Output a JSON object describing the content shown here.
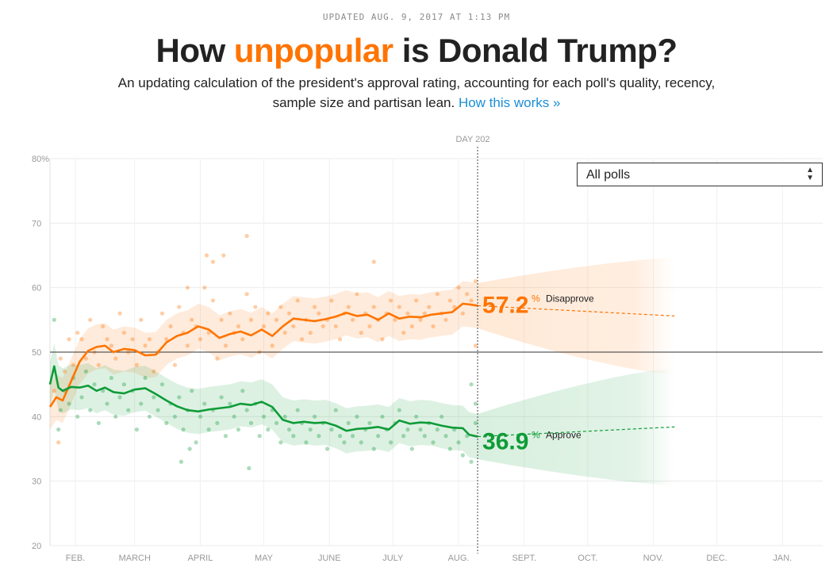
{
  "header": {
    "updated": "UPDATED AUG. 9, 2017 AT 1:13 PM",
    "title_pre": "How ",
    "title_highlight": "unpopular",
    "title_post": " is Donald Trump?",
    "subtitle": "An updating calculation of the president's approval rating, accounting for each poll's quality, recency, sample size and partisan lean.",
    "link": "How this works »"
  },
  "filter": {
    "selected": "All polls",
    "icon": "up-down-arrows-icon"
  },
  "chart_data": {
    "type": "line",
    "marker": {
      "label": "DAY 202",
      "x": 202
    },
    "ylim": [
      20,
      80
    ],
    "yticks": [
      {
        "v": 20,
        "label": "20"
      },
      {
        "v": 30,
        "label": "30"
      },
      {
        "v": 40,
        "label": "40"
      },
      {
        "v": 50,
        "label": "50"
      },
      {
        "v": 60,
        "label": "60"
      },
      {
        "v": 70,
        "label": "70"
      },
      {
        "v": 80,
        "label": "80%"
      }
    ],
    "xlim": [
      0,
      365
    ],
    "xticks": [
      {
        "day": 12,
        "label": "FEB."
      },
      {
        "day": 40,
        "label": "MARCH"
      },
      {
        "day": 71,
        "label": "APRIL"
      },
      {
        "day": 101,
        "label": "MAY"
      },
      {
        "day": 132,
        "label": "JUNE"
      },
      {
        "day": 162,
        "label": "JULY"
      },
      {
        "day": 193,
        "label": "AUG."
      },
      {
        "day": 224,
        "label": "SEPT."
      },
      {
        "day": 254,
        "label": "OCT."
      },
      {
        "day": 285,
        "label": "NOV."
      },
      {
        "day": 315,
        "label": "DEC."
      },
      {
        "day": 346,
        "label": "JAN."
      }
    ],
    "reference_line": 50,
    "series": [
      {
        "name": "Disapprove",
        "color": "#ff7400",
        "current": "57.2",
        "x": [
          0,
          3,
          6,
          10,
          14,
          18,
          22,
          26,
          30,
          35,
          40,
          45,
          50,
          55,
          60,
          65,
          70,
          75,
          80,
          85,
          90,
          95,
          100,
          105,
          110,
          115,
          120,
          125,
          130,
          135,
          140,
          145,
          150,
          155,
          160,
          165,
          170,
          175,
          180,
          185,
          190,
          195,
          198,
          202
        ],
        "y": [
          41.5,
          43.0,
          42.5,
          45.5,
          48.5,
          50.2,
          50.8,
          51.0,
          50.0,
          50.5,
          50.3,
          49.5,
          49.6,
          51.5,
          52.5,
          53.0,
          54.0,
          53.5,
          52.2,
          52.8,
          53.2,
          52.6,
          53.5,
          52.5,
          54.0,
          55.2,
          55.0,
          54.8,
          55.1,
          55.5,
          56.1,
          55.6,
          55.8,
          55.0,
          56.0,
          55.2,
          55.5,
          55.4,
          55.8,
          56.0,
          56.2,
          57.5,
          57.4,
          57.2
        ],
        "band": 3.5,
        "forecast": {
          "x": [
            202,
            295
          ],
          "y": [
            57.2,
            55.6
          ],
          "spread": [
            3.5,
            9.0
          ]
        },
        "polls": [
          [
            2,
            44
          ],
          [
            4,
            36
          ],
          [
            5,
            49
          ],
          [
            7,
            47
          ],
          [
            9,
            52
          ],
          [
            11,
            48
          ],
          [
            13,
            53
          ],
          [
            15,
            52
          ],
          [
            17,
            49
          ],
          [
            19,
            55
          ],
          [
            21,
            50
          ],
          [
            23,
            48
          ],
          [
            25,
            54
          ],
          [
            27,
            52
          ],
          [
            29,
            51
          ],
          [
            31,
            49
          ],
          [
            33,
            56
          ],
          [
            35,
            53
          ],
          [
            37,
            50
          ],
          [
            39,
            52
          ],
          [
            41,
            48
          ],
          [
            43,
            55
          ],
          [
            45,
            51
          ],
          [
            47,
            52
          ],
          [
            49,
            47
          ],
          [
            51,
            50
          ],
          [
            53,
            56
          ],
          [
            55,
            52
          ],
          [
            57,
            54
          ],
          [
            59,
            48
          ],
          [
            61,
            57
          ],
          [
            63,
            53
          ],
          [
            65,
            51
          ],
          [
            67,
            55
          ],
          [
            69,
            54
          ],
          [
            71,
            52
          ],
          [
            73,
            60
          ],
          [
            75,
            53
          ],
          [
            77,
            58
          ],
          [
            79,
            49
          ],
          [
            81,
            55
          ],
          [
            83,
            51
          ],
          [
            85,
            56
          ],
          [
            87,
            53
          ],
          [
            89,
            54
          ],
          [
            91,
            52
          ],
          [
            93,
            59
          ],
          [
            95,
            55
          ],
          [
            97,
            57
          ],
          [
            99,
            50
          ],
          [
            101,
            54
          ],
          [
            103,
            56
          ],
          [
            105,
            51
          ],
          [
            107,
            55
          ],
          [
            109,
            57
          ],
          [
            111,
            53
          ],
          [
            113,
            56
          ],
          [
            115,
            54
          ],
          [
            117,
            58
          ],
          [
            119,
            52
          ],
          [
            121,
            55
          ],
          [
            123,
            53
          ],
          [
            125,
            57
          ],
          [
            127,
            56
          ],
          [
            129,
            54
          ],
          [
            131,
            55
          ],
          [
            133,
            58
          ],
          [
            135,
            54
          ],
          [
            137,
            52
          ],
          [
            139,
            56
          ],
          [
            141,
            57
          ],
          [
            143,
            55
          ],
          [
            145,
            59
          ],
          [
            147,
            53
          ],
          [
            149,
            56
          ],
          [
            151,
            54
          ],
          [
            153,
            57
          ],
          [
            155,
            55
          ],
          [
            157,
            52
          ],
          [
            159,
            56
          ],
          [
            161,
            58
          ],
          [
            163,
            55
          ],
          [
            165,
            57
          ],
          [
            167,
            53
          ],
          [
            169,
            56
          ],
          [
            171,
            54
          ],
          [
            173,
            58
          ],
          [
            175,
            55
          ],
          [
            177,
            56
          ],
          [
            179,
            57
          ],
          [
            181,
            54
          ],
          [
            183,
            59
          ],
          [
            185,
            56
          ],
          [
            187,
            55
          ],
          [
            189,
            58
          ],
          [
            191,
            57
          ],
          [
            193,
            60
          ],
          [
            195,
            56
          ],
          [
            197,
            59
          ],
          [
            199,
            58
          ],
          [
            201,
            61
          ],
          [
            74,
            65
          ],
          [
            77,
            64
          ],
          [
            82,
            65
          ],
          [
            93,
            68
          ],
          [
            65,
            60
          ],
          [
            153,
            64
          ],
          [
            201,
            51
          ]
        ]
      },
      {
        "name": "Approve",
        "color": "#0e9c37",
        "current": "36.9",
        "x": [
          0,
          2,
          4,
          6,
          10,
          14,
          18,
          22,
          26,
          30,
          35,
          40,
          45,
          50,
          55,
          60,
          65,
          70,
          75,
          80,
          85,
          90,
          95,
          100,
          105,
          110,
          115,
          120,
          125,
          130,
          135,
          140,
          145,
          150,
          155,
          160,
          165,
          170,
          175,
          180,
          185,
          190,
          195,
          198,
          202
        ],
        "y": [
          45.0,
          47.8,
          44.5,
          44.0,
          44.6,
          44.5,
          44.8,
          44.0,
          44.5,
          43.8,
          43.6,
          44.2,
          44.4,
          43.5,
          42.5,
          41.6,
          41.0,
          40.8,
          41.1,
          41.3,
          41.5,
          42.0,
          41.8,
          42.3,
          41.5,
          39.5,
          39.0,
          39.2,
          39.0,
          39.1,
          38.6,
          37.8,
          38.1,
          38.2,
          38.4,
          38.0,
          39.4,
          38.9,
          39.1,
          39.0,
          38.6,
          38.3,
          38.2,
          37.2,
          36.9
        ],
        "band": 3.5,
        "forecast": {
          "x": [
            202,
            295
          ],
          "y": [
            36.9,
            38.4
          ],
          "spread": [
            3.5,
            9.0
          ]
        },
        "polls": [
          [
            2,
            55
          ],
          [
            4,
            38
          ],
          [
            5,
            41
          ],
          [
            7,
            44
          ],
          [
            9,
            42
          ],
          [
            11,
            46
          ],
          [
            13,
            40
          ],
          [
            15,
            43
          ],
          [
            17,
            47
          ],
          [
            19,
            41
          ],
          [
            21,
            45
          ],
          [
            23,
            39
          ],
          [
            25,
            44
          ],
          [
            27,
            42
          ],
          [
            29,
            46
          ],
          [
            31,
            40
          ],
          [
            33,
            43
          ],
          [
            35,
            45
          ],
          [
            37,
            41
          ],
          [
            39,
            44
          ],
          [
            41,
            38
          ],
          [
            43,
            42
          ],
          [
            45,
            46
          ],
          [
            47,
            40
          ],
          [
            49,
            43
          ],
          [
            51,
            41
          ],
          [
            53,
            45
          ],
          [
            55,
            39
          ],
          [
            57,
            42
          ],
          [
            59,
            40
          ],
          [
            61,
            43
          ],
          [
            63,
            38
          ],
          [
            65,
            41
          ],
          [
            67,
            44
          ],
          [
            69,
            36
          ],
          [
            71,
            40
          ],
          [
            73,
            42
          ],
          [
            75,
            38
          ],
          [
            77,
            41
          ],
          [
            79,
            39
          ],
          [
            81,
            43
          ],
          [
            83,
            37
          ],
          [
            85,
            42
          ],
          [
            87,
            40
          ],
          [
            89,
            38
          ],
          [
            91,
            44
          ],
          [
            93,
            41
          ],
          [
            95,
            39
          ],
          [
            97,
            42
          ],
          [
            99,
            37
          ],
          [
            101,
            40
          ],
          [
            103,
            38
          ],
          [
            105,
            41
          ],
          [
            107,
            39
          ],
          [
            109,
            36
          ],
          [
            111,
            40
          ],
          [
            113,
            38
          ],
          [
            115,
            37
          ],
          [
            117,
            41
          ],
          [
            119,
            39
          ],
          [
            121,
            36
          ],
          [
            123,
            38
          ],
          [
            125,
            40
          ],
          [
            127,
            37
          ],
          [
            129,
            39
          ],
          [
            131,
            35
          ],
          [
            133,
            38
          ],
          [
            135,
            41
          ],
          [
            137,
            37
          ],
          [
            139,
            36
          ],
          [
            141,
            39
          ],
          [
            143,
            37
          ],
          [
            145,
            40
          ],
          [
            147,
            36
          ],
          [
            149,
            38
          ],
          [
            151,
            39
          ],
          [
            153,
            35
          ],
          [
            155,
            37
          ],
          [
            157,
            40
          ],
          [
            159,
            38
          ],
          [
            161,
            36
          ],
          [
            163,
            39
          ],
          [
            165,
            41
          ],
          [
            167,
            37
          ],
          [
            169,
            38
          ],
          [
            171,
            35
          ],
          [
            173,
            40
          ],
          [
            175,
            38
          ],
          [
            177,
            37
          ],
          [
            179,
            39
          ],
          [
            181,
            36
          ],
          [
            183,
            38
          ],
          [
            185,
            40
          ],
          [
            187,
            37
          ],
          [
            189,
            35
          ],
          [
            191,
            38
          ],
          [
            193,
            36
          ],
          [
            195,
            34
          ],
          [
            197,
            37
          ],
          [
            199,
            33
          ],
          [
            201,
            39
          ],
          [
            66,
            35
          ],
          [
            62,
            33
          ],
          [
            94,
            32
          ],
          [
            199,
            45
          ],
          [
            201,
            42
          ]
        ]
      }
    ]
  }
}
